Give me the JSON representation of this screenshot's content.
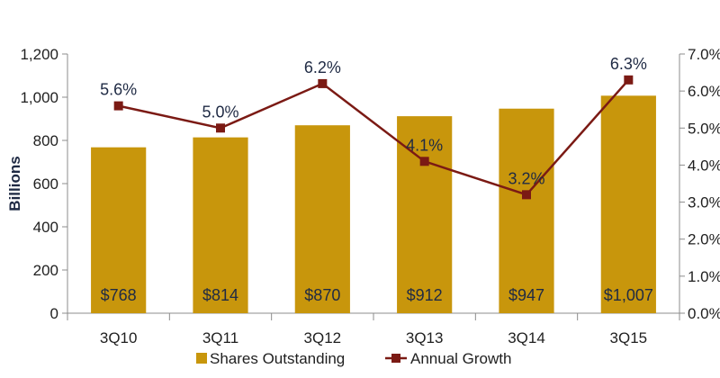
{
  "chart_data": {
    "type": "bar",
    "categories": [
      "3Q10",
      "3Q11",
      "3Q12",
      "3Q13",
      "3Q14",
      "3Q15"
    ],
    "series": [
      {
        "name": "Shares Outstanding",
        "type": "bar",
        "axis": "left",
        "values": [
          768,
          814,
          870,
          912,
          947,
          1007
        ],
        "labels": [
          "$768",
          "$814",
          "$870",
          "$912",
          "$947",
          "$1,007"
        ],
        "color": "#C8960C"
      },
      {
        "name": "Annual Growth",
        "type": "line",
        "axis": "right",
        "values": [
          5.6,
          5.0,
          6.2,
          4.1,
          3.2,
          6.3
        ],
        "labels": [
          "5.6%",
          "5.0%",
          "6.2%",
          "4.1%",
          "3.2%",
          "6.3%"
        ],
        "color": "#7B1A14"
      }
    ],
    "ylabel": "Billions",
    "ylim": [
      0,
      1200
    ],
    "y_ticks": [
      "0",
      "200",
      "400",
      "600",
      "800",
      "1,000",
      "1,200"
    ],
    "y2lim": [
      0,
      7.0
    ],
    "y2_ticks": [
      "0.0%",
      "1.0%",
      "2.0%",
      "3.0%",
      "4.0%",
      "5.0%",
      "6.0%",
      "7.0%"
    ],
    "grid": false,
    "legend": {
      "position": "bottom",
      "entries": [
        "Shares Outstanding",
        "Annual Growth"
      ]
    }
  }
}
